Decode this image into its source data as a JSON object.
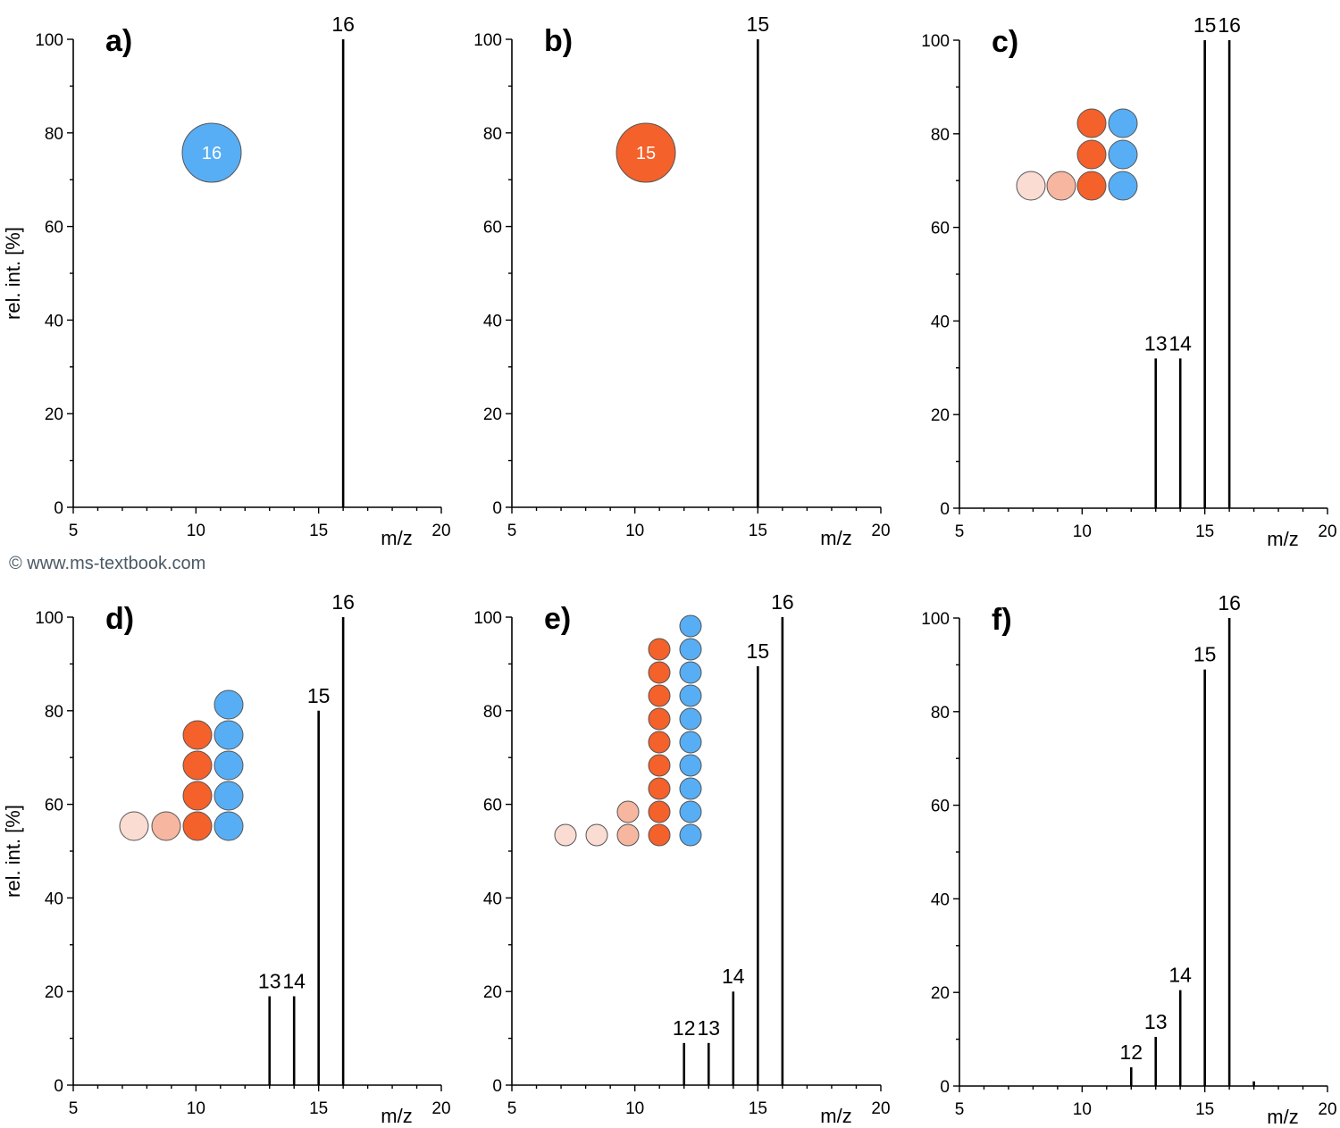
{
  "copyright": "© www.ms-textbook.com",
  "colors": {
    "blue": "#58aef4",
    "orange": "#f4612a",
    "pale_orange": "#f6b6a0",
    "very_pale_orange": "#fadcd3",
    "outline": "#555555"
  },
  "chart_data": [
    {
      "type": "bar",
      "panel": "a)",
      "xlabel": "m/z",
      "ylabel": "rel. int. [%]",
      "xlim": [
        5,
        20
      ],
      "ylim": [
        0,
        100
      ],
      "xticks": [
        "5",
        "10",
        "15",
        "20"
      ],
      "yticks": [
        "0",
        "20",
        "40",
        "60",
        "80",
        "100"
      ],
      "peaks": [
        {
          "mz": 16,
          "intensity": 100,
          "label": "16"
        }
      ],
      "isotope_diagram": {
        "single_circle": {
          "color": "blue",
          "label": "16"
        }
      }
    },
    {
      "type": "bar",
      "panel": "b)",
      "xlabel": "m/z",
      "ylabel": "",
      "xlim": [
        5,
        20
      ],
      "ylim": [
        0,
        100
      ],
      "xticks": [
        "5",
        "10",
        "15",
        "20"
      ],
      "yticks": [
        "0",
        "20",
        "40",
        "60",
        "80",
        "100"
      ],
      "peaks": [
        {
          "mz": 15,
          "intensity": 100,
          "label": "15"
        }
      ],
      "isotope_diagram": {
        "single_circle": {
          "color": "orange",
          "label": "15"
        }
      }
    },
    {
      "type": "bar",
      "panel": "c)",
      "xlabel": "m/z",
      "ylabel": "",
      "xlim": [
        5,
        20
      ],
      "ylim": [
        0,
        100
      ],
      "xticks": [
        "5",
        "10",
        "15",
        "20"
      ],
      "yticks": [
        "0",
        "20",
        "40",
        "60",
        "80",
        "100"
      ],
      "peaks": [
        {
          "mz": 13,
          "intensity": 32,
          "label": "13"
        },
        {
          "mz": 14,
          "intensity": 32,
          "label": "14"
        },
        {
          "mz": 15,
          "intensity": 100,
          "label": "15"
        },
        {
          "mz": 16,
          "intensity": 100,
          "label": "16"
        }
      ],
      "isotope_diagram": {
        "columns": [
          [
            "very_pale_orange"
          ],
          [
            "pale_orange"
          ],
          [
            "orange",
            "orange",
            "orange"
          ],
          [
            "blue",
            "blue",
            "blue"
          ]
        ]
      }
    },
    {
      "type": "bar",
      "panel": "d)",
      "xlabel": "m/z",
      "ylabel": "rel. int. [%]",
      "xlim": [
        5,
        20
      ],
      "ylim": [
        0,
        100
      ],
      "xticks": [
        "5",
        "10",
        "15",
        "20"
      ],
      "yticks": [
        "0",
        "20",
        "40",
        "60",
        "80",
        "100"
      ],
      "peaks": [
        {
          "mz": 13,
          "intensity": 19,
          "label": "13"
        },
        {
          "mz": 14,
          "intensity": 19,
          "label": "14"
        },
        {
          "mz": 15,
          "intensity": 80,
          "label": "15"
        },
        {
          "mz": 16,
          "intensity": 100,
          "label": "16"
        }
      ],
      "isotope_diagram": {
        "columns": [
          [
            "very_pale_orange"
          ],
          [
            "pale_orange"
          ],
          [
            "orange",
            "orange",
            "orange",
            "orange"
          ],
          [
            "blue",
            "blue",
            "blue",
            "blue",
            "blue"
          ]
        ]
      }
    },
    {
      "type": "bar",
      "panel": "e)",
      "xlabel": "m/z",
      "ylabel": "",
      "xlim": [
        5,
        20
      ],
      "ylim": [
        0,
        100
      ],
      "xticks": [
        "5",
        "10",
        "15",
        "20"
      ],
      "yticks": [
        "0",
        "20",
        "40",
        "60",
        "80",
        "100"
      ],
      "peaks": [
        {
          "mz": 12,
          "intensity": 9,
          "label": "12"
        },
        {
          "mz": 13,
          "intensity": 9,
          "label": "13"
        },
        {
          "mz": 14,
          "intensity": 20,
          "label": "14"
        },
        {
          "mz": 15,
          "intensity": 89.5,
          "label": "15"
        },
        {
          "mz": 16,
          "intensity": 100,
          "label": "16"
        }
      ],
      "isotope_diagram": {
        "columns": [
          [
            "very_pale_orange"
          ],
          [
            "very_pale_orange"
          ],
          [
            "pale_orange",
            "pale_orange"
          ],
          [
            "orange",
            "orange",
            "orange",
            "orange",
            "orange",
            "orange",
            "orange",
            "orange",
            "orange"
          ],
          [
            "blue",
            "blue",
            "blue",
            "blue",
            "blue",
            "blue",
            "blue",
            "blue",
            "blue",
            "blue"
          ]
        ]
      }
    },
    {
      "type": "bar",
      "panel": "f)",
      "xlabel": "m/z",
      "ylabel": "",
      "xlim": [
        5,
        20
      ],
      "ylim": [
        0,
        100
      ],
      "xticks": [
        "5",
        "10",
        "15",
        "20"
      ],
      "yticks": [
        "0",
        "20",
        "40",
        "60",
        "80",
        "100"
      ],
      "peaks": [
        {
          "mz": 12,
          "intensity": 4,
          "label": "12"
        },
        {
          "mz": 13,
          "intensity": 10.5,
          "label": "13"
        },
        {
          "mz": 14,
          "intensity": 20.5,
          "label": "14"
        },
        {
          "mz": 15,
          "intensity": 89,
          "label": "15"
        },
        {
          "mz": 16,
          "intensity": 100,
          "label": "16"
        },
        {
          "mz": 17,
          "intensity": 1,
          "label": ""
        }
      ],
      "isotope_diagram": null
    }
  ]
}
